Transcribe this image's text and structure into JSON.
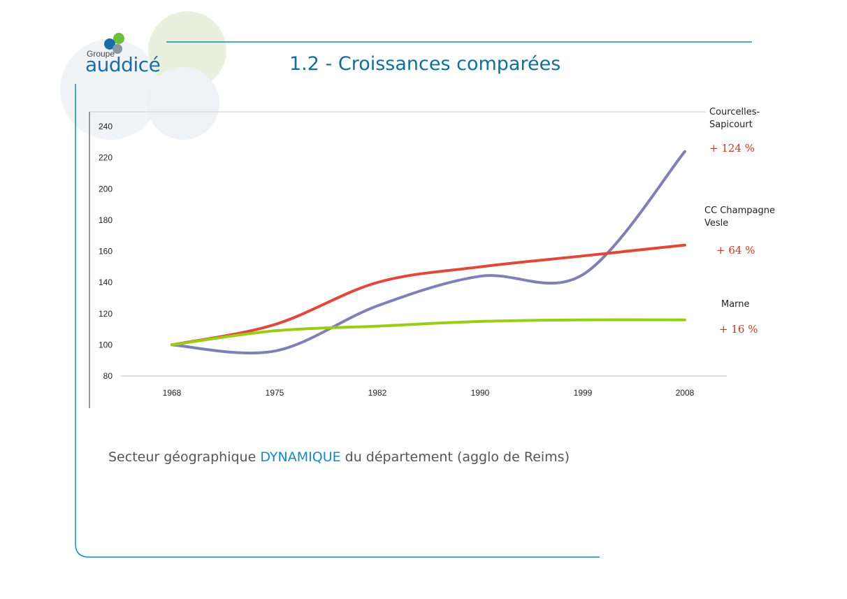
{
  "logo": {
    "small": "Groupe",
    "big": "auddicé"
  },
  "slide_title": "1.2 - Croissances comparées",
  "caption": {
    "before": "Secteur géographique ",
    "highlight": "DYNAMIQUE",
    "after": " du département (agglo de Reims)"
  },
  "colors": {
    "title": "#0e6f9a",
    "accent_line": "#1689c4",
    "courcelles": "#8080b4",
    "cc_champagne_vesle": "#e0483a",
    "marne": "#9acd14",
    "pct_text": "#d0351c"
  },
  "annotations": [
    {
      "name": "Courcelles-Sapicourt",
      "lines": [
        "Courcelles-",
        "Sapicourt"
      ],
      "change": "+ 124 %"
    },
    {
      "name": "CC Champagne Vesle",
      "lines": [
        "CC Champagne",
        "Vesle"
      ],
      "change": "+ 64 %"
    },
    {
      "name": "Marne",
      "lines": [
        "Marne"
      ],
      "change": "+ 16 %"
    }
  ],
  "chart_data": {
    "type": "line",
    "categories": [
      "1968",
      "1975",
      "1982",
      "1990",
      "1999",
      "2008"
    ],
    "ylim": [
      80,
      240
    ],
    "yticks": [
      80,
      100,
      120,
      140,
      160,
      180,
      200,
      220,
      240
    ],
    "grid": false,
    "series": [
      {
        "name": "Courcelles-Sapicourt",
        "values": [
          100,
          96,
          125,
          144,
          145,
          224
        ]
      },
      {
        "name": "CC Champagne Vesle",
        "values": [
          100,
          113,
          140,
          150,
          157,
          164
        ]
      },
      {
        "name": "Marne",
        "values": [
          100,
          109,
          112,
          115,
          116,
          116
        ]
      }
    ]
  }
}
